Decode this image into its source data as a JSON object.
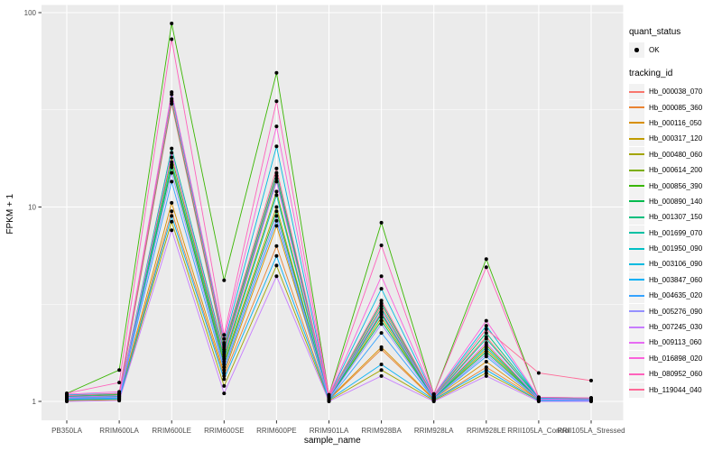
{
  "figure": {
    "background": "#FFFFFF",
    "panel_background": "#EBEBEB",
    "grid_color": "#FFFFFF",
    "tick_color": "#333333",
    "axis_text_color": "#4D4D4D",
    "title_color": "#000000",
    "point_color": "#000000",
    "legend_key_fill": "#F2F2F2"
  },
  "legend": {
    "quant_title": "quant_status",
    "quant_items": [
      {
        "label": "OK"
      }
    ],
    "tracking_title": "tracking_id"
  },
  "chart_data": {
    "type": "line",
    "title": "",
    "xlabel": "sample_name",
    "ylabel": "FPKM + 1",
    "y_scale": "log10",
    "ylim": [
      0.8,
      110
    ],
    "y_tick_values": [
      100,
      10,
      1
    ],
    "y_tick_labels": [
      "100",
      "10",
      "1"
    ],
    "y_minor_values": [
      31.62,
      3.162
    ],
    "grid": true,
    "legend_position": "right",
    "points": "black dot at every sample for every series",
    "categories": [
      "PB350LA",
      "RRIM600LA",
      "RRIM600LE",
      "RRIM600SE",
      "RRIM600PE",
      "RRIM901LA",
      "RRIM928BA",
      "RRIM928LA",
      "RRIM928LE",
      "RRII105LA_Control",
      "RRII105LA_Stressed"
    ],
    "series": [
      {
        "name": "Hb_000038_070",
        "color": "#F8766D",
        "values": [
          1.05,
          1.06,
          34,
          1.85,
          14.5,
          1.04,
          3.1,
          1.05,
          2.15,
          1.03,
          1.02
        ]
      },
      {
        "name": "Hb_000085_360",
        "color": "#EA8331",
        "values": [
          1.02,
          1.03,
          9.5,
          1.35,
          6.3,
          1.02,
          1.85,
          1.02,
          1.5,
          1.02,
          1.01
        ]
      },
      {
        "name": "Hb_000116_050",
        "color": "#D89000",
        "values": [
          1.03,
          1.04,
          10.5,
          1.4,
          8.0,
          1.03,
          1.9,
          1.03,
          1.6,
          1.02,
          1.02
        ]
      },
      {
        "name": "Hb_000317_120",
        "color": "#C09B00",
        "values": [
          1.04,
          1.05,
          16.5,
          1.6,
          10.0,
          1.03,
          2.7,
          1.04,
          1.85,
          1.03,
          1.02
        ]
      },
      {
        "name": "Hb_000480_060",
        "color": "#A3A500",
        "values": [
          1.01,
          1.02,
          8.4,
          1.2,
          5.0,
          1.01,
          1.45,
          1.01,
          1.4,
          1.01,
          1.01
        ]
      },
      {
        "name": "Hb_000614_200",
        "color": "#7CAE00",
        "values": [
          1.06,
          1.08,
          18,
          1.7,
          12.0,
          1.05,
          2.85,
          1.05,
          1.95,
          1.03,
          1.03
        ]
      },
      {
        "name": "Hb_000856_390",
        "color": "#39B600",
        "values": [
          1.1,
          1.45,
          88,
          4.2,
          49,
          1.08,
          8.3,
          1.09,
          5.4,
          1.05,
          1.04
        ]
      },
      {
        "name": "Hb_000890_140",
        "color": "#00BB4E",
        "values": [
          1.05,
          1.06,
          16,
          1.55,
          9.5,
          1.04,
          2.6,
          1.04,
          1.8,
          1.03,
          1.02
        ]
      },
      {
        "name": "Hb_001307_150",
        "color": "#00BF7D",
        "values": [
          1.07,
          1.09,
          35,
          1.9,
          15.0,
          1.06,
          3.2,
          1.06,
          2.25,
          1.04,
          1.03
        ]
      },
      {
        "name": "Hb_001699_070",
        "color": "#00C1A3",
        "values": [
          1.06,
          1.07,
          20,
          1.8,
          14.0,
          1.05,
          3.0,
          1.05,
          2.1,
          1.04,
          1.03
        ]
      },
      {
        "name": "Hb_001950_090",
        "color": "#00BFC4",
        "values": [
          1.04,
          1.06,
          17,
          1.65,
          11.5,
          1.04,
          2.8,
          1.04,
          1.9,
          1.03,
          1.02
        ]
      },
      {
        "name": "Hb_003106_090",
        "color": "#00BAE0",
        "values": [
          1.08,
          1.1,
          38,
          2.0,
          20.5,
          1.07,
          3.8,
          1.07,
          2.45,
          1.04,
          1.04
        ]
      },
      {
        "name": "Hb_003847_060",
        "color": "#00B0F6",
        "values": [
          1.02,
          1.03,
          9.0,
          1.3,
          5.6,
          1.02,
          1.55,
          1.02,
          1.45,
          1.01,
          1.01
        ]
      },
      {
        "name": "Hb_004635_020",
        "color": "#35A2FF",
        "values": [
          1.03,
          1.04,
          13.5,
          1.45,
          8.5,
          1.02,
          2.25,
          1.03,
          1.7,
          1.02,
          1.01
        ]
      },
      {
        "name": "Hb_005276_090",
        "color": "#9590FF",
        "values": [
          1.04,
          1.05,
          15,
          1.5,
          9.0,
          1.03,
          2.5,
          1.03,
          1.75,
          1.02,
          1.02
        ]
      },
      {
        "name": "Hb_007245_030",
        "color": "#C77CFF",
        "values": [
          1.0,
          1.01,
          7.6,
          1.1,
          4.4,
          1.0,
          1.35,
          1.0,
          1.35,
          1.0,
          1.0
        ]
      },
      {
        "name": "Hb_009113_060",
        "color": "#E76BF3",
        "values": [
          1.05,
          1.07,
          19,
          1.75,
          13.5,
          1.05,
          2.9,
          1.05,
          2.0,
          1.03,
          1.02
        ]
      },
      {
        "name": "Hb_016898_020",
        "color": "#FA62DB",
        "values": [
          1.09,
          1.12,
          39,
          2.1,
          26,
          1.07,
          4.4,
          1.08,
          2.6,
          1.05,
          1.04
        ]
      },
      {
        "name": "Hb_080952_060",
        "color": "#FF62BC",
        "values": [
          1.1,
          1.25,
          73,
          2.2,
          35,
          1.08,
          6.35,
          1.09,
          4.9,
          1.05,
          1.04
        ]
      },
      {
        "name": "Hb_119044_040",
        "color": "#FF6A98",
        "values": [
          1.07,
          1.1,
          36,
          1.95,
          15.8,
          1.06,
          3.3,
          1.06,
          2.35,
          1.4,
          1.28
        ]
      }
    ]
  }
}
